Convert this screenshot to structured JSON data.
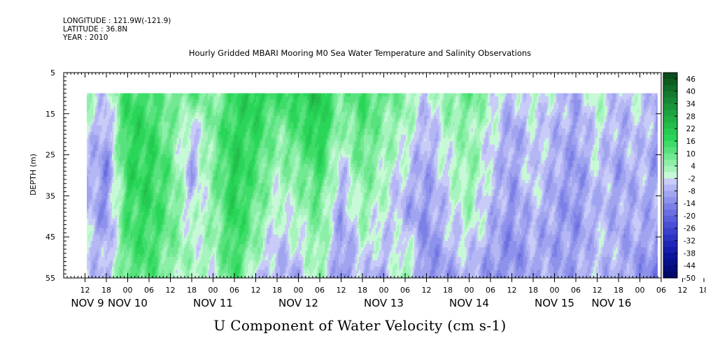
{
  "header": {
    "longitude": "LONGITUDE : 121.9W(-121.9)",
    "latitude": "LATITUDE : 36.8N",
    "year": "YEAR : 2010"
  },
  "chart_data": {
    "type": "heatmap",
    "title": "Hourly Gridded MBARI Mooring M0 Sea Water Temperature and Salinity Observations",
    "xlabel": "U Component of Water Velocity (cm s-1)",
    "ylabel": "DEPTH (m)",
    "y_ticks": [
      5,
      15,
      25,
      35,
      45,
      55
    ],
    "y_range": [
      5,
      55
    ],
    "y_inverted": true,
    "data_depth_range": [
      10,
      55
    ],
    "x_unit": "hours since NOV 9 00",
    "x_range": [
      6,
      174
    ],
    "data_x_range": [
      12.5,
      173
    ],
    "hour_ticks": [
      "12",
      "18",
      "00",
      "06",
      "12",
      "18",
      "00",
      "06",
      "12",
      "18",
      "00",
      "06",
      "12",
      "18",
      "00",
      "06",
      "12",
      "18",
      "00",
      "06",
      "12",
      "18",
      "00",
      "06",
      "12",
      "18",
      "00",
      "06",
      "12",
      "18",
      "00",
      "06"
    ],
    "day_labels": [
      "NOV  9",
      "NOV 10",
      "NOV 11",
      "NOV 12",
      "NOV 13",
      "NOV 14",
      "NOV 15",
      "NOV 16"
    ],
    "colorbar": {
      "labels": [
        "46",
        "40",
        "34",
        "28",
        "22",
        "16",
        "10",
        "4",
        "-2",
        "-8",
        "-14",
        "-20",
        "-26",
        "-32",
        "-38",
        "-44",
        "-50"
      ],
      "levels": [
        49,
        46,
        43,
        40,
        37,
        34,
        31,
        28,
        25,
        22,
        19,
        16,
        13,
        10,
        7,
        4,
        1,
        -2,
        -5,
        -8,
        -11,
        -14,
        -17,
        -20,
        -23,
        -26,
        -29,
        -32,
        -35,
        -38,
        -41,
        -44,
        -47,
        -50
      ],
      "colors": [
        "#0a4d1c",
        "#0e5c22",
        "#116b28",
        "#15792e",
        "#188734",
        "#1b953a",
        "#1ea340",
        "#21b046",
        "#24bd4c",
        "#27ca52",
        "#2ad658",
        "#3fdc69",
        "#58e27d",
        "#72e892",
        "#8cefa8",
        "#a8f4be",
        "#c7f9d6",
        "#c9cbf8",
        "#b4b7f4",
        "#a1a4ef",
        "#8e92ea",
        "#7c80e6",
        "#6a6fe1",
        "#5a5fdc",
        "#4a4fd5",
        "#3b41cd",
        "#2d33c4",
        "#2027b8",
        "#151daa",
        "#0c149a",
        "#06108a",
        "#030c79",
        "#000868"
      ]
    },
    "velocity_samples_cm_s": {
      "depth_m": [
        10,
        20,
        30,
        40,
        50,
        55
      ],
      "hours": [
        12,
        18,
        24,
        30,
        36,
        42,
        48,
        54,
        60,
        66,
        72,
        78,
        84,
        90,
        96,
        102,
        108,
        114,
        120,
        126,
        132,
        138,
        144,
        150,
        156,
        162,
        168,
        173
      ],
      "values": [
        [
          4,
          -4,
          16,
          14,
          6,
          12,
          4,
          16,
          20,
          14,
          18,
          22,
          8,
          14,
          10,
          6,
          -4,
          6,
          10,
          2,
          -6,
          2,
          -4,
          -8,
          2,
          -6,
          -2,
          -8
        ],
        [
          -2,
          -10,
          18,
          16,
          8,
          -6,
          8,
          18,
          16,
          6,
          12,
          20,
          2,
          12,
          4,
          2,
          -8,
          2,
          4,
          -2,
          -10,
          -4,
          -6,
          -10,
          -2,
          -8,
          -4,
          -10
        ],
        [
          -4,
          -14,
          16,
          18,
          10,
          -8,
          6,
          20,
          12,
          2,
          6,
          14,
          -6,
          8,
          2,
          -4,
          -10,
          -2,
          6,
          -4,
          -10,
          -2,
          -8,
          -12,
          -4,
          -10,
          -6,
          -10
        ],
        [
          -4,
          -12,
          14,
          16,
          10,
          -2,
          4,
          18,
          8,
          -2,
          2,
          8,
          -10,
          4,
          -2,
          -8,
          -12,
          -4,
          2,
          -6,
          -12,
          -6,
          -10,
          -12,
          -6,
          -8,
          -8,
          -8
        ],
        [
          -2,
          -8,
          12,
          14,
          6,
          2,
          2,
          16,
          2,
          -6,
          -4,
          6,
          -12,
          -2,
          -6,
          4,
          -14,
          -8,
          -4,
          -10,
          -14,
          -8,
          -10,
          -10,
          -4,
          -8,
          -10,
          -14
        ],
        [
          -4,
          -6,
          10,
          12,
          4,
          0,
          0,
          14,
          -4,
          -8,
          -8,
          4,
          -14,
          -4,
          -10,
          6,
          -14,
          -10,
          -8,
          -12,
          -12,
          -8,
          -10,
          -10,
          -6,
          -8,
          -12,
          -16
        ]
      ]
    },
    "grid": false,
    "legend": "colorbar-right"
  }
}
